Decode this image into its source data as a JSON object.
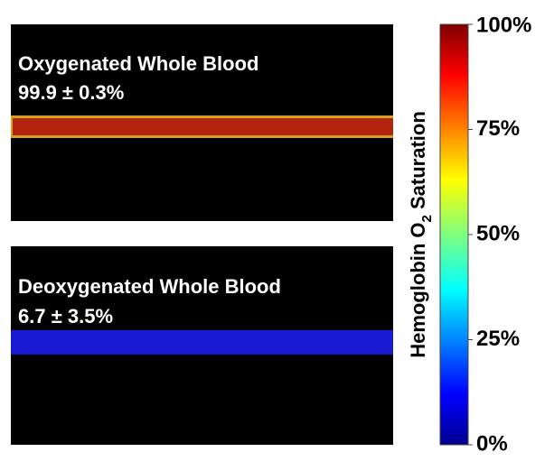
{
  "panels": [
    {
      "title": "Oxygenated Whole Blood",
      "value": "99.9 ± 0.3%"
    },
    {
      "title": "Deoxygenated Whole Blood",
      "value": "6.7 ± 3.5%"
    }
  ],
  "colorbar": {
    "label": "Hemoglobin O",
    "label_subscript": "2",
    "label_suffix": " Saturation",
    "range": [
      0,
      100
    ],
    "ticks": [
      {
        "value": 0,
        "label": "0%"
      },
      {
        "value": 25,
        "label": "25%"
      },
      {
        "value": 50,
        "label": "50%"
      },
      {
        "value": 75,
        "label": "75%"
      },
      {
        "value": 100,
        "label": "100%"
      }
    ]
  }
}
